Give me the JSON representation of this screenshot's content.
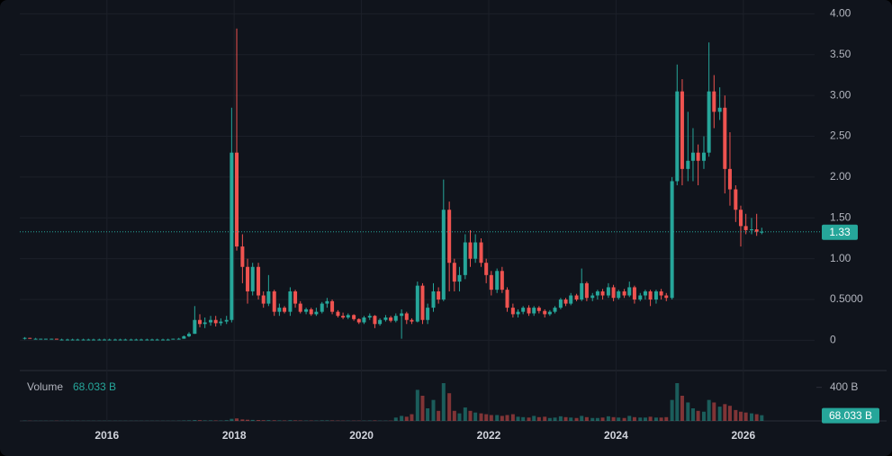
{
  "chart_data": {
    "type": "candlestick",
    "x": [
      2014.71,
      2014.79,
      2014.88,
      2014.96,
      2015.04,
      2015.13,
      2015.21,
      2015.29,
      2015.38,
      2015.46,
      2015.54,
      2015.63,
      2015.71,
      2015.79,
      2015.88,
      2015.96,
      2016.04,
      2016.13,
      2016.21,
      2016.29,
      2016.38,
      2016.46,
      2016.54,
      2016.63,
      2016.71,
      2016.79,
      2016.88,
      2016.96,
      2017.04,
      2017.13,
      2017.21,
      2017.29,
      2017.38,
      2017.46,
      2017.54,
      2017.63,
      2017.71,
      2017.79,
      2017.88,
      2017.96,
      2018.04,
      2018.13,
      2018.21,
      2018.29,
      2018.38,
      2018.46,
      2018.54,
      2018.63,
      2018.71,
      2018.79,
      2018.88,
      2018.96,
      2019.04,
      2019.13,
      2019.21,
      2019.29,
      2019.38,
      2019.46,
      2019.54,
      2019.63,
      2019.71,
      2019.79,
      2019.88,
      2019.96,
      2020.04,
      2020.13,
      2020.21,
      2020.29,
      2020.38,
      2020.46,
      2020.54,
      2020.63,
      2020.71,
      2020.79,
      2020.88,
      2020.96,
      2021.04,
      2021.13,
      2021.21,
      2021.29,
      2021.38,
      2021.46,
      2021.54,
      2021.63,
      2021.71,
      2021.79,
      2021.88,
      2021.96,
      2022.04,
      2022.13,
      2022.21,
      2022.29,
      2022.38,
      2022.46,
      2022.54,
      2022.63,
      2022.71,
      2022.79,
      2022.88,
      2022.96,
      2023.04,
      2023.13,
      2023.21,
      2023.29,
      2023.38,
      2023.46,
      2023.54,
      2023.63,
      2023.71,
      2023.79,
      2023.88,
      2023.96,
      2024.04,
      2024.13,
      2024.21,
      2024.29,
      2024.38,
      2024.46,
      2024.54,
      2024.63,
      2024.71,
      2024.79,
      2024.88,
      2024.96,
      2025.04,
      2025.13,
      2025.21,
      2025.29,
      2025.38,
      2025.46,
      2025.54,
      2025.63,
      2025.71,
      2025.79,
      2025.88,
      2025.96,
      2026.04,
      2026.13,
      2026.21,
      2026.29
    ],
    "open": [
      0.02,
      0.03,
      0.02,
      0.02,
      0.02,
      0.02,
      0.02,
      0.01,
      0.01,
      0.01,
      0.01,
      0.01,
      0.01,
      0.01,
      0.01,
      0.01,
      0.01,
      0.01,
      0.01,
      0.01,
      0.01,
      0.01,
      0.01,
      0.01,
      0.01,
      0.01,
      0.01,
      0.01,
      0.01,
      0.02,
      0.02,
      0.05,
      0.08,
      0.25,
      0.2,
      0.22,
      0.25,
      0.21,
      0.23,
      0.25,
      2.3,
      1.15,
      0.9,
      0.6,
      0.9,
      0.55,
      0.45,
      0.6,
      0.35,
      0.4,
      0.35,
      0.6,
      0.45,
      0.35,
      0.38,
      0.32,
      0.35,
      0.45,
      0.48,
      0.35,
      0.3,
      0.28,
      0.31,
      0.26,
      0.22,
      0.28,
      0.3,
      0.2,
      0.25,
      0.28,
      0.24,
      0.3,
      0.33,
      0.25,
      0.23,
      0.67,
      0.25,
      0.4,
      0.6,
      0.5,
      1.6,
      0.95,
      0.72,
      0.8,
      1.2,
      1.0,
      1.2,
      0.95,
      0.8,
      0.62,
      0.85,
      0.62,
      0.4,
      0.32,
      0.35,
      0.4,
      0.33,
      0.4,
      0.36,
      0.32,
      0.35,
      0.4,
      0.5,
      0.45,
      0.55,
      0.5,
      0.7,
      0.52,
      0.55,
      0.6,
      0.55,
      0.65,
      0.52,
      0.6,
      0.55,
      0.65,
      0.5,
      0.55,
      0.6,
      0.5,
      0.6,
      0.55,
      0.52,
      1.95,
      3.05,
      2.1,
      2.2,
      2.3,
      2.2,
      2.3,
      3.05,
      2.8,
      2.85,
      2.1,
      1.85,
      1.6,
      1.4,
      1.35,
      1.36,
      1.33
    ],
    "high": [
      0.04,
      0.03,
      0.03,
      0.02,
      0.02,
      0.02,
      0.02,
      0.02,
      0.02,
      0.02,
      0.02,
      0.02,
      0.02,
      0.02,
      0.02,
      0.02,
      0.02,
      0.02,
      0.02,
      0.02,
      0.02,
      0.02,
      0.02,
      0.02,
      0.02,
      0.02,
      0.02,
      0.02,
      0.02,
      0.03,
      0.06,
      0.1,
      0.42,
      0.32,
      0.28,
      0.3,
      0.3,
      0.27,
      0.3,
      2.85,
      3.82,
      1.3,
      1.0,
      0.95,
      0.95,
      0.6,
      0.8,
      0.62,
      0.45,
      0.42,
      0.65,
      0.62,
      0.48,
      0.4,
      0.4,
      0.4,
      0.47,
      0.52,
      0.5,
      0.37,
      0.34,
      0.33,
      0.32,
      0.27,
      0.3,
      0.33,
      0.31,
      0.27,
      0.31,
      0.3,
      0.33,
      0.38,
      0.35,
      0.27,
      0.72,
      0.7,
      0.45,
      0.7,
      0.65,
      1.97,
      1.7,
      1.0,
      0.9,
      1.3,
      1.35,
      1.3,
      1.25,
      1.0,
      0.85,
      0.88,
      0.9,
      0.65,
      0.45,
      0.38,
      0.42,
      0.43,
      0.42,
      0.42,
      0.38,
      0.37,
      0.42,
      0.52,
      0.52,
      0.58,
      0.57,
      0.88,
      0.72,
      0.58,
      0.62,
      0.63,
      0.7,
      0.68,
      0.62,
      0.63,
      0.72,
      0.67,
      0.58,
      0.62,
      0.62,
      0.62,
      0.63,
      0.58,
      2.0,
      3.38,
      3.2,
      2.8,
      2.6,
      2.4,
      2.5,
      3.65,
      3.25,
      3.1,
      3.0,
      2.55,
      1.9,
      1.65,
      1.55,
      1.5,
      1.55,
      1.38
    ],
    "low": [
      0.01,
      0.02,
      0.02,
      0.01,
      0.01,
      0.01,
      0.01,
      0.01,
      0.01,
      0.01,
      0.01,
      0.01,
      0.01,
      0.01,
      0.01,
      0.01,
      0.01,
      0.01,
      0.01,
      0.01,
      0.01,
      0.01,
      0.01,
      0.01,
      0.01,
      0.01,
      0.01,
      0.01,
      0.01,
      0.01,
      0.02,
      0.04,
      0.08,
      0.16,
      0.15,
      0.18,
      0.17,
      0.18,
      0.2,
      0.22,
      1.1,
      0.7,
      0.45,
      0.55,
      0.5,
      0.4,
      0.42,
      0.3,
      0.3,
      0.33,
      0.3,
      0.4,
      0.33,
      0.32,
      0.3,
      0.3,
      0.33,
      0.4,
      0.32,
      0.28,
      0.26,
      0.26,
      0.24,
      0.2,
      0.2,
      0.25,
      0.15,
      0.18,
      0.23,
      0.22,
      0.22,
      0.02,
      0.2,
      0.2,
      0.22,
      0.2,
      0.2,
      0.35,
      0.45,
      0.48,
      0.6,
      0.6,
      0.6,
      0.75,
      0.9,
      0.95,
      0.9,
      0.7,
      0.55,
      0.58,
      0.58,
      0.35,
      0.28,
      0.28,
      0.32,
      0.3,
      0.3,
      0.33,
      0.28,
      0.3,
      0.33,
      0.38,
      0.42,
      0.43,
      0.48,
      0.48,
      0.48,
      0.48,
      0.5,
      0.5,
      0.52,
      0.48,
      0.5,
      0.52,
      0.53,
      0.45,
      0.48,
      0.5,
      0.42,
      0.45,
      0.5,
      0.48,
      0.5,
      1.9,
      1.9,
      1.95,
      1.95,
      1.9,
      2.1,
      2.25,
      2.6,
      2.7,
      1.8,
      1.65,
      1.45,
      1.15,
      1.3,
      1.3,
      1.28,
      1.3
    ],
    "close": [
      0.03,
      0.02,
      0.02,
      0.02,
      0.02,
      0.02,
      0.01,
      0.01,
      0.01,
      0.01,
      0.01,
      0.01,
      0.01,
      0.01,
      0.01,
      0.01,
      0.01,
      0.01,
      0.01,
      0.01,
      0.01,
      0.01,
      0.01,
      0.01,
      0.01,
      0.01,
      0.01,
      0.01,
      0.02,
      0.02,
      0.05,
      0.08,
      0.25,
      0.2,
      0.22,
      0.25,
      0.21,
      0.23,
      0.25,
      2.3,
      1.15,
      0.9,
      0.6,
      0.9,
      0.55,
      0.45,
      0.6,
      0.35,
      0.4,
      0.35,
      0.6,
      0.45,
      0.35,
      0.38,
      0.32,
      0.35,
      0.45,
      0.48,
      0.35,
      0.3,
      0.28,
      0.31,
      0.26,
      0.22,
      0.28,
      0.3,
      0.2,
      0.25,
      0.28,
      0.24,
      0.3,
      0.33,
      0.25,
      0.23,
      0.67,
      0.25,
      0.4,
      0.6,
      0.5,
      1.6,
      0.95,
      0.72,
      0.8,
      1.2,
      1.0,
      1.2,
      0.95,
      0.8,
      0.62,
      0.85,
      0.62,
      0.4,
      0.32,
      0.35,
      0.4,
      0.33,
      0.4,
      0.36,
      0.32,
      0.35,
      0.4,
      0.5,
      0.45,
      0.55,
      0.5,
      0.7,
      0.52,
      0.55,
      0.6,
      0.55,
      0.65,
      0.52,
      0.6,
      0.55,
      0.65,
      0.5,
      0.55,
      0.6,
      0.5,
      0.6,
      0.55,
      0.52,
      1.95,
      3.05,
      2.1,
      2.2,
      2.3,
      2.2,
      2.3,
      3.05,
      2.8,
      2.85,
      2.1,
      1.85,
      1.6,
      1.4,
      1.35,
      1.36,
      1.33,
      1.33
    ],
    "up_color": "#26a69a",
    "down_color": "#ef5350",
    "xlim": [
      2014.32,
      2027.12
    ],
    "xticks": [
      2016,
      2018,
      2020,
      2022,
      2024,
      2026
    ],
    "ylim": [
      -0.37,
      4.17
    ],
    "yticks": [
      0,
      {
        "value": 0.5,
        "label": "0.5000"
      },
      {
        "value": 1,
        "label": "1.00"
      },
      {
        "value": 1.5,
        "label": "1.50"
      },
      {
        "value": 2,
        "label": "2.00"
      },
      {
        "value": 2.5,
        "label": "2.50"
      },
      {
        "value": 3,
        "label": "3.00"
      },
      {
        "value": 3.5,
        "label": "3.50"
      },
      {
        "value": 4,
        "label": "4.00"
      }
    ],
    "grid": true,
    "volume": {
      "name": "Volume",
      "last_label": "68.033 B",
      "values": [
        3,
        2,
        2,
        2,
        2,
        2,
        2,
        2,
        2,
        2,
        2,
        2,
        2,
        2,
        2,
        2,
        2,
        2,
        2,
        2,
        2,
        2,
        2,
        2,
        2,
        2,
        2,
        2,
        2,
        3,
        5,
        6,
        10,
        8,
        6,
        6,
        5,
        5,
        8,
        25,
        30,
        18,
        14,
        12,
        10,
        8,
        9,
        7,
        6,
        5,
        8,
        6,
        5,
        4,
        4,
        4,
        6,
        6,
        5,
        4,
        3,
        3,
        3,
        3,
        3,
        4,
        5,
        3,
        3,
        3,
        40,
        60,
        50,
        80,
        370,
        300,
        150,
        250,
        120,
        450,
        330,
        120,
        90,
        160,
        120,
        100,
        90,
        80,
        70,
        70,
        60,
        70,
        80,
        50,
        45,
        40,
        60,
        45,
        50,
        35,
        40,
        55,
        45,
        40,
        35,
        60,
        45,
        35,
        35,
        40,
        55,
        45,
        40,
        35,
        60,
        45,
        40,
        40,
        50,
        40,
        40,
        45,
        250,
        450,
        300,
        220,
        150,
        120,
        110,
        250,
        220,
        170,
        200,
        180,
        130,
        110,
        100,
        90,
        80,
        68.033
      ],
      "ylim": [
        0,
        600
      ],
      "yticks": [
        {
          "value": 400,
          "label": "400 B"
        }
      ]
    }
  }
}
